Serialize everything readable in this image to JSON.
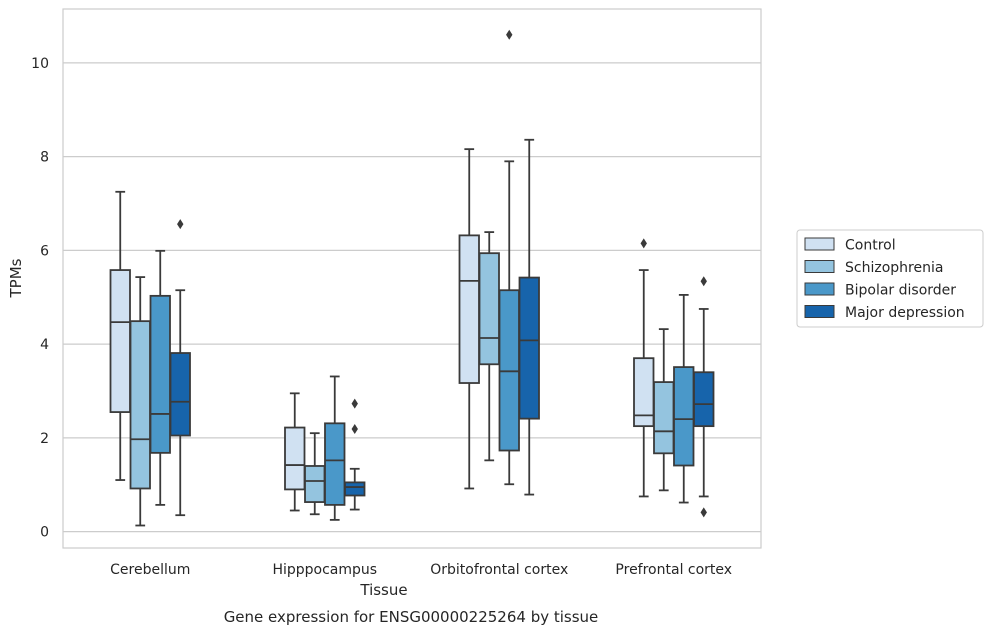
{
  "chart_data": {
    "type": "boxplot",
    "title": "",
    "caption": "Gene expression for ENSG00000225264 by tissue",
    "xlabel": "Tissue",
    "ylabel": "TPMs",
    "ylim": [
      -0.35,
      11.15
    ],
    "yticks": [
      0,
      2,
      4,
      6,
      8,
      10
    ],
    "categories": [
      "Cerebellum",
      "Hipppocampus",
      "Orbitofrontal cortex",
      "Prefrontal cortex"
    ],
    "grid": true,
    "legend_placement": "right",
    "series": [
      {
        "name": "Control",
        "color": "#d0e1f2",
        "boxes": [
          {
            "whislo": 1.1,
            "q1": 2.55,
            "med": 4.47,
            "q3": 5.58,
            "whishi": 7.25,
            "fliers": []
          },
          {
            "whislo": 0.45,
            "q1": 0.9,
            "med": 1.42,
            "q3": 2.22,
            "whishi": 2.95,
            "fliers": []
          },
          {
            "whislo": 0.92,
            "q1": 3.17,
            "med": 5.35,
            "q3": 6.32,
            "whishi": 8.16,
            "fliers": []
          },
          {
            "whislo": 0.75,
            "q1": 2.25,
            "med": 2.48,
            "q3": 3.7,
            "whishi": 5.58,
            "fliers": [
              6.15
            ]
          }
        ]
      },
      {
        "name": "Schizophrenia",
        "color": "#94c4df",
        "boxes": [
          {
            "whislo": 0.13,
            "q1": 0.92,
            "med": 1.97,
            "q3": 4.49,
            "whishi": 5.43,
            "fliers": []
          },
          {
            "whislo": 0.37,
            "q1": 0.63,
            "med": 1.08,
            "q3": 1.4,
            "whishi": 2.1,
            "fliers": []
          },
          {
            "whislo": 1.52,
            "q1": 3.57,
            "med": 4.13,
            "q3": 5.94,
            "whishi": 6.39,
            "fliers": []
          },
          {
            "whislo": 0.88,
            "q1": 1.67,
            "med": 2.14,
            "q3": 3.19,
            "whishi": 4.32,
            "fliers": []
          }
        ]
      },
      {
        "name": "Bipolar disorder",
        "color": "#4a98c9",
        "boxes": [
          {
            "whislo": 0.57,
            "q1": 1.68,
            "med": 2.51,
            "q3": 5.03,
            "whishi": 5.99,
            "fliers": []
          },
          {
            "whislo": 0.25,
            "q1": 0.57,
            "med": 1.52,
            "q3": 2.31,
            "whishi": 3.31,
            "fliers": []
          },
          {
            "whislo": 1.01,
            "q1": 1.73,
            "med": 3.42,
            "q3": 5.15,
            "whishi": 7.9,
            "fliers": [
              10.6
            ]
          },
          {
            "whislo": 0.62,
            "q1": 1.41,
            "med": 2.4,
            "q3": 3.51,
            "whishi": 5.05,
            "fliers": []
          }
        ]
      },
      {
        "name": "Major depression",
        "color": "#1764ab",
        "boxes": [
          {
            "whislo": 0.35,
            "q1": 2.05,
            "med": 2.77,
            "q3": 3.81,
            "whishi": 5.15,
            "fliers": [
              6.56
            ]
          },
          {
            "whislo": 0.47,
            "q1": 0.77,
            "med": 0.95,
            "q3": 1.05,
            "whishi": 1.34,
            "fliers": [
              2.19,
              2.73
            ]
          },
          {
            "whislo": 0.79,
            "q1": 2.41,
            "med": 4.08,
            "q3": 5.42,
            "whishi": 8.36,
            "fliers": []
          },
          {
            "whislo": 0.75,
            "q1": 2.25,
            "med": 2.72,
            "q3": 3.4,
            "whishi": 4.75,
            "fliers": [
              0.41,
              5.34
            ]
          }
        ]
      }
    ]
  }
}
